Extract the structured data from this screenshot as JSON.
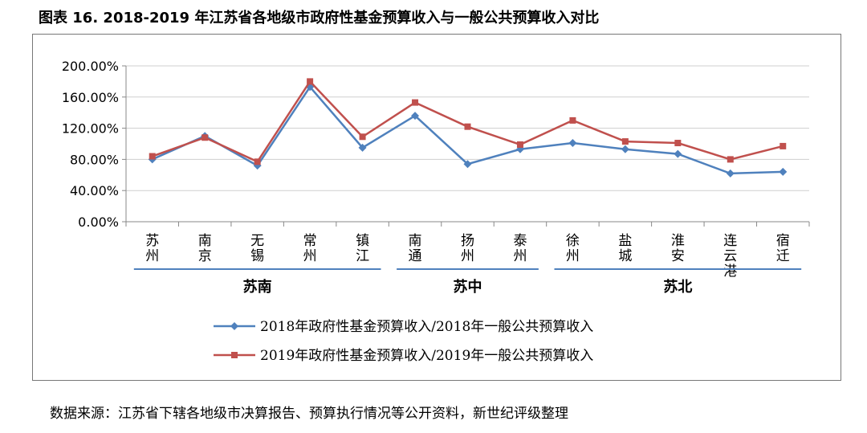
{
  "title": "图表 16. 2018-2019 年江苏省各地级市政府性基金预算收入与一般公共预算收入对比",
  "source": "数据来源：江苏省下辖各地级市决算报告、预算执行情况等公开资料，新世纪评级整理",
  "chart_data": {
    "type": "line",
    "categories": [
      "苏州",
      "南京",
      "无锡",
      "常州",
      "镇江",
      "南通",
      "扬州",
      "泰州",
      "徐州",
      "盐城",
      "淮安",
      "连云港",
      "宿迁"
    ],
    "y_ticks": [
      "0.00%",
      "40.00%",
      "80.00%",
      "120.00%",
      "160.00%",
      "200.00%"
    ],
    "ylim": [
      0,
      200
    ],
    "groups": [
      {
        "label": "苏南",
        "members": [
          "苏州",
          "南京",
          "无锡",
          "常州",
          "镇江"
        ]
      },
      {
        "label": "苏中",
        "members": [
          "南通",
          "扬州",
          "泰州"
        ]
      },
      {
        "label": "苏北",
        "members": [
          "徐州",
          "盐城",
          "淮安",
          "连云港",
          "宿迁"
        ]
      }
    ],
    "series": [
      {
        "name": "2018年政府性基金预算收入/2018年一般公共预算收入",
        "color": "#4f81bd",
        "marker": "diamond",
        "values": [
          80,
          110,
          72,
          173,
          95,
          136,
          74,
          93,
          101,
          93,
          87,
          62,
          64
        ]
      },
      {
        "name": "2019年政府性基金预算收入/2019年一般公共预算收入",
        "color": "#c0504d",
        "marker": "square",
        "values": [
          84,
          108,
          77,
          180,
          109,
          153,
          122,
          99,
          130,
          103,
          101,
          80,
          97
        ]
      }
    ],
    "legend_position": "bottom",
    "grid": "horizontal"
  }
}
